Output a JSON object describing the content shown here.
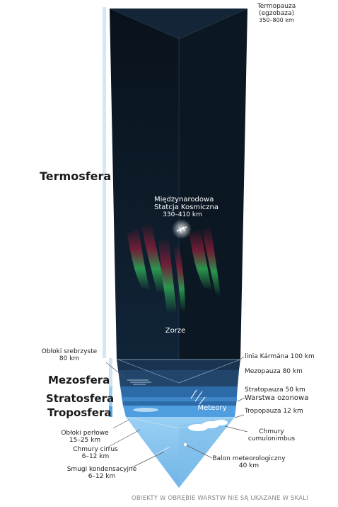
{
  "layers": {
    "thermosphere": "Termosfera",
    "mesosphere": "Mezosfera",
    "stratosphere": "Stratosfera",
    "troposphere": "Troposfera"
  },
  "top_label": {
    "line1": "Termopauza",
    "line2": "(egzobaza)",
    "line3": "350–800 km"
  },
  "iss": {
    "line1": "Międzynarodowa",
    "line2": "Statcja Kosmiczna",
    "line3": "330–410 km"
  },
  "aurora": "Zorze",
  "meteors": "Meteory",
  "noctilucent": {
    "line1": "Obłoki srebrzyste",
    "line2": "80 km"
  },
  "right_labels": {
    "karman": "linia Kármána 100 km",
    "mesopause": "Mezopauza 80 km",
    "stratopause": "Stratopauza 50 km",
    "ozone": "Warstwa ozonowa",
    "tropopause": "Tropopauza 12 km",
    "cumulonimbus_1": "Chmury",
    "cumulonimbus_2": "cumulonimbus",
    "balloon_1": "Balon meteorologiczny",
    "balloon_2": "40 km"
  },
  "left_labels": {
    "nacreous_1": "Obłoki perłowe",
    "nacreous_2": "15–25 km",
    "cirrus_1": "Chmury cirrus",
    "cirrus_2": "6–12 km",
    "contrails_1": "Smugi kondensacyjne",
    "contrails_2": "6–12 km"
  },
  "footnote": "OBIEKTY W OBRĘBIE WARSTW NIE SĄ UKAZANE W SKALI",
  "colors": {
    "space": "#0d1a26",
    "mesosphere": "#1c3a5c",
    "stratosphere": "#2f6fb0",
    "troposphere": "#5aa8e6",
    "ground": "#8cc8f0",
    "aurora_green": "#2fb35a",
    "aurora_red": "#a0203a",
    "scale_bar": "#cfe6f7"
  }
}
